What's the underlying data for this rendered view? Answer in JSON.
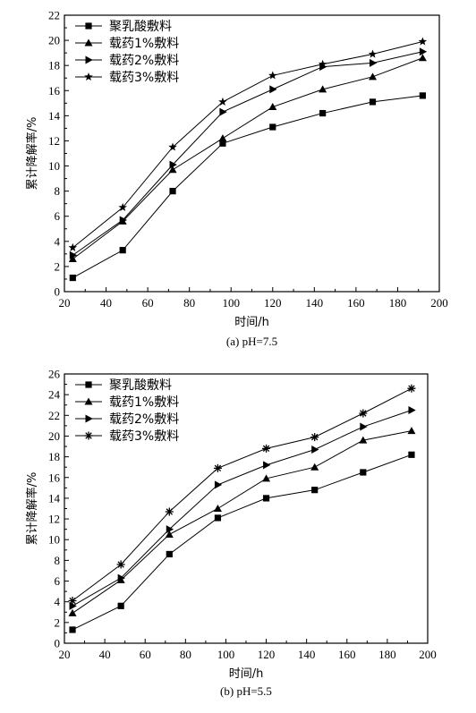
{
  "chart_data": [
    {
      "type": "line",
      "caption": "(a) pH=7.5",
      "xlabel": "时间/h",
      "ylabel": "累计降解率/%",
      "xlim": [
        20,
        200
      ],
      "ylim": [
        0,
        22
      ],
      "xticks": [
        20,
        40,
        60,
        80,
        100,
        120,
        140,
        160,
        180,
        200
      ],
      "yticks": [
        0,
        2,
        4,
        6,
        8,
        10,
        12,
        14,
        16,
        18,
        20,
        22
      ],
      "legend_position": "top-left",
      "x": [
        24,
        48,
        72,
        96,
        120,
        144,
        168,
        192
      ],
      "series": [
        {
          "name": "聚乳酸敷料",
          "marker": "square",
          "values": [
            1.1,
            3.3,
            8.0,
            11.8,
            13.1,
            14.2,
            15.1,
            15.6
          ]
        },
        {
          "name": "载药1%敷料",
          "marker": "triangle-up",
          "values": [
            2.6,
            5.6,
            9.7,
            12.2,
            14.7,
            16.1,
            17.1,
            18.6
          ]
        },
        {
          "name": "载药2%敷料",
          "marker": "triangle-right",
          "values": [
            2.9,
            5.7,
            10.1,
            14.3,
            16.1,
            17.9,
            18.2,
            19.1
          ]
        },
        {
          "name": "载药3%敷料",
          "marker": "star",
          "values": [
            3.5,
            6.7,
            11.5,
            15.1,
            17.2,
            18.1,
            18.9,
            19.9
          ]
        }
      ]
    },
    {
      "type": "line",
      "caption": "(b) pH=5.5",
      "xlabel": "时间/h",
      "ylabel": "累计降解率/%",
      "xlim": [
        20,
        200
      ],
      "ylim": [
        0,
        26
      ],
      "xticks": [
        20,
        40,
        60,
        80,
        100,
        120,
        140,
        160,
        180,
        200
      ],
      "yticks": [
        0,
        2,
        4,
        6,
        8,
        10,
        12,
        14,
        16,
        18,
        20,
        22,
        24,
        26
      ],
      "legend_position": "top-left",
      "x": [
        24,
        48,
        72,
        96,
        120,
        144,
        168,
        192
      ],
      "series": [
        {
          "name": "聚乳酸敷料",
          "marker": "square",
          "values": [
            1.3,
            3.6,
            8.6,
            12.1,
            14.0,
            14.8,
            16.5,
            18.2
          ]
        },
        {
          "name": "载药1%敷料",
          "marker": "triangle-up",
          "values": [
            2.9,
            6.1,
            10.5,
            13.0,
            15.9,
            17.0,
            19.6,
            20.5
          ]
        },
        {
          "name": "载药2%敷料",
          "marker": "triangle-right",
          "values": [
            3.6,
            6.3,
            11.0,
            15.3,
            17.2,
            18.7,
            20.9,
            22.5
          ]
        },
        {
          "name": "载药3%敷料",
          "marker": "asterisk",
          "values": [
            4.1,
            7.6,
            12.7,
            16.9,
            18.8,
            19.9,
            22.2,
            24.6
          ]
        }
      ]
    }
  ]
}
